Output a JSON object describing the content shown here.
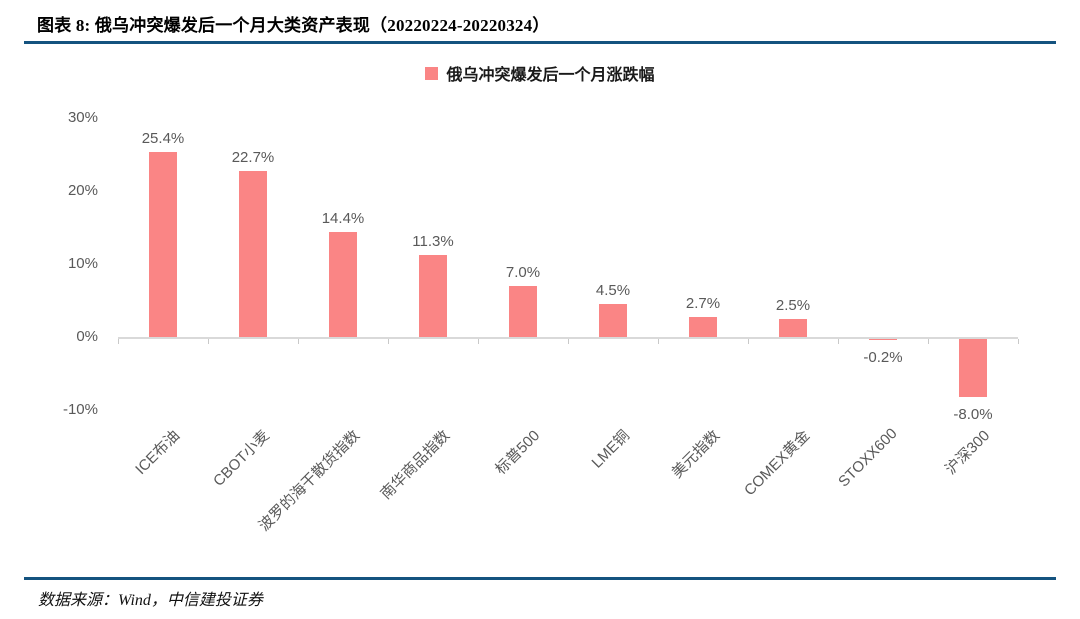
{
  "header": {
    "title": "图表 8: 俄乌冲突爆发后一个月大类资产表现（20220224-20220324）"
  },
  "legend": {
    "label": "俄乌冲突爆发后一个月涨跌幅"
  },
  "footer": {
    "source": "数据来源：Wind，中信建投证券"
  },
  "colors": {
    "bar": "#FA8585",
    "accent_rule": "#14537F",
    "axis_line": "#D9D9D9",
    "tick_label": "#595959"
  },
  "chart_data": {
    "type": "bar",
    "title": "俄乌冲突爆发后一个月涨跌幅",
    "categories": [
      "ICE布油",
      "CBOT小麦",
      "波罗的海干散货指数",
      "南华商品指数",
      "标普500",
      "LME铜",
      "美元指数",
      "COMEX黄金",
      "STOXX600",
      "沪深300"
    ],
    "values": [
      25.4,
      22.7,
      14.4,
      11.3,
      7.0,
      4.5,
      2.7,
      2.5,
      -0.2,
      -8.0
    ],
    "value_labels": [
      "25.4%",
      "22.7%",
      "14.4%",
      "11.3%",
      "7.0%",
      "4.5%",
      "2.7%",
      "2.5%",
      "-0.2%",
      "-8.0%"
    ],
    "xlabel": "",
    "ylabel": "",
    "yticks": [
      30,
      20,
      10,
      0,
      -10
    ],
    "ytick_labels": [
      "30%",
      "20%",
      "10%",
      "0%",
      "-10%"
    ],
    "ylim": [
      -10,
      30
    ],
    "grid": false,
    "legend_position": "top-center",
    "bar_color": "#FA8585"
  }
}
